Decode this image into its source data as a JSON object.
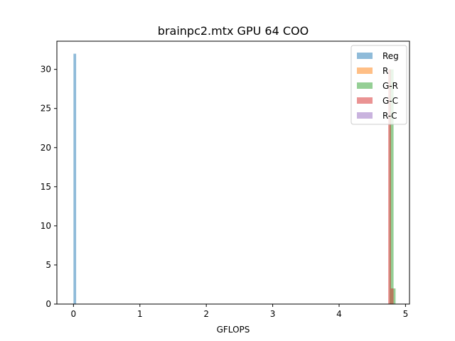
{
  "chart_data": {
    "type": "bar",
    "title": "brainpc2.mtx GPU 64 COO",
    "xlabel": "GFLOPS",
    "ylabel": "",
    "xlim": [
      -0.25,
      5.06
    ],
    "ylim": [
      0,
      33.6
    ],
    "xticks": [
      0,
      1,
      2,
      3,
      4,
      5
    ],
    "yticks": [
      0,
      5,
      10,
      15,
      20,
      25,
      30
    ],
    "legend_position": "top-right",
    "grid": false,
    "series": [
      {
        "name": "Reg",
        "color": "#1f77b4",
        "bins": [
          {
            "x0": 0.0,
            "x1": 0.04,
            "count": 32
          }
        ]
      },
      {
        "name": "R",
        "color": "#ff7f0e",
        "bins": []
      },
      {
        "name": "G-R",
        "color": "#2ca02c",
        "bins": [
          {
            "x0": 4.76,
            "x1": 4.82,
            "count": 30
          },
          {
            "x0": 4.82,
            "x1": 4.85,
            "count": 2
          }
        ]
      },
      {
        "name": "G-C",
        "color": "#d62728",
        "bins": [
          {
            "x0": 4.74,
            "x1": 4.78,
            "count": 30
          },
          {
            "x0": 4.78,
            "x1": 4.82,
            "count": 2
          }
        ]
      },
      {
        "name": "R-C",
        "color": "#9467bd",
        "bins": []
      }
    ]
  }
}
